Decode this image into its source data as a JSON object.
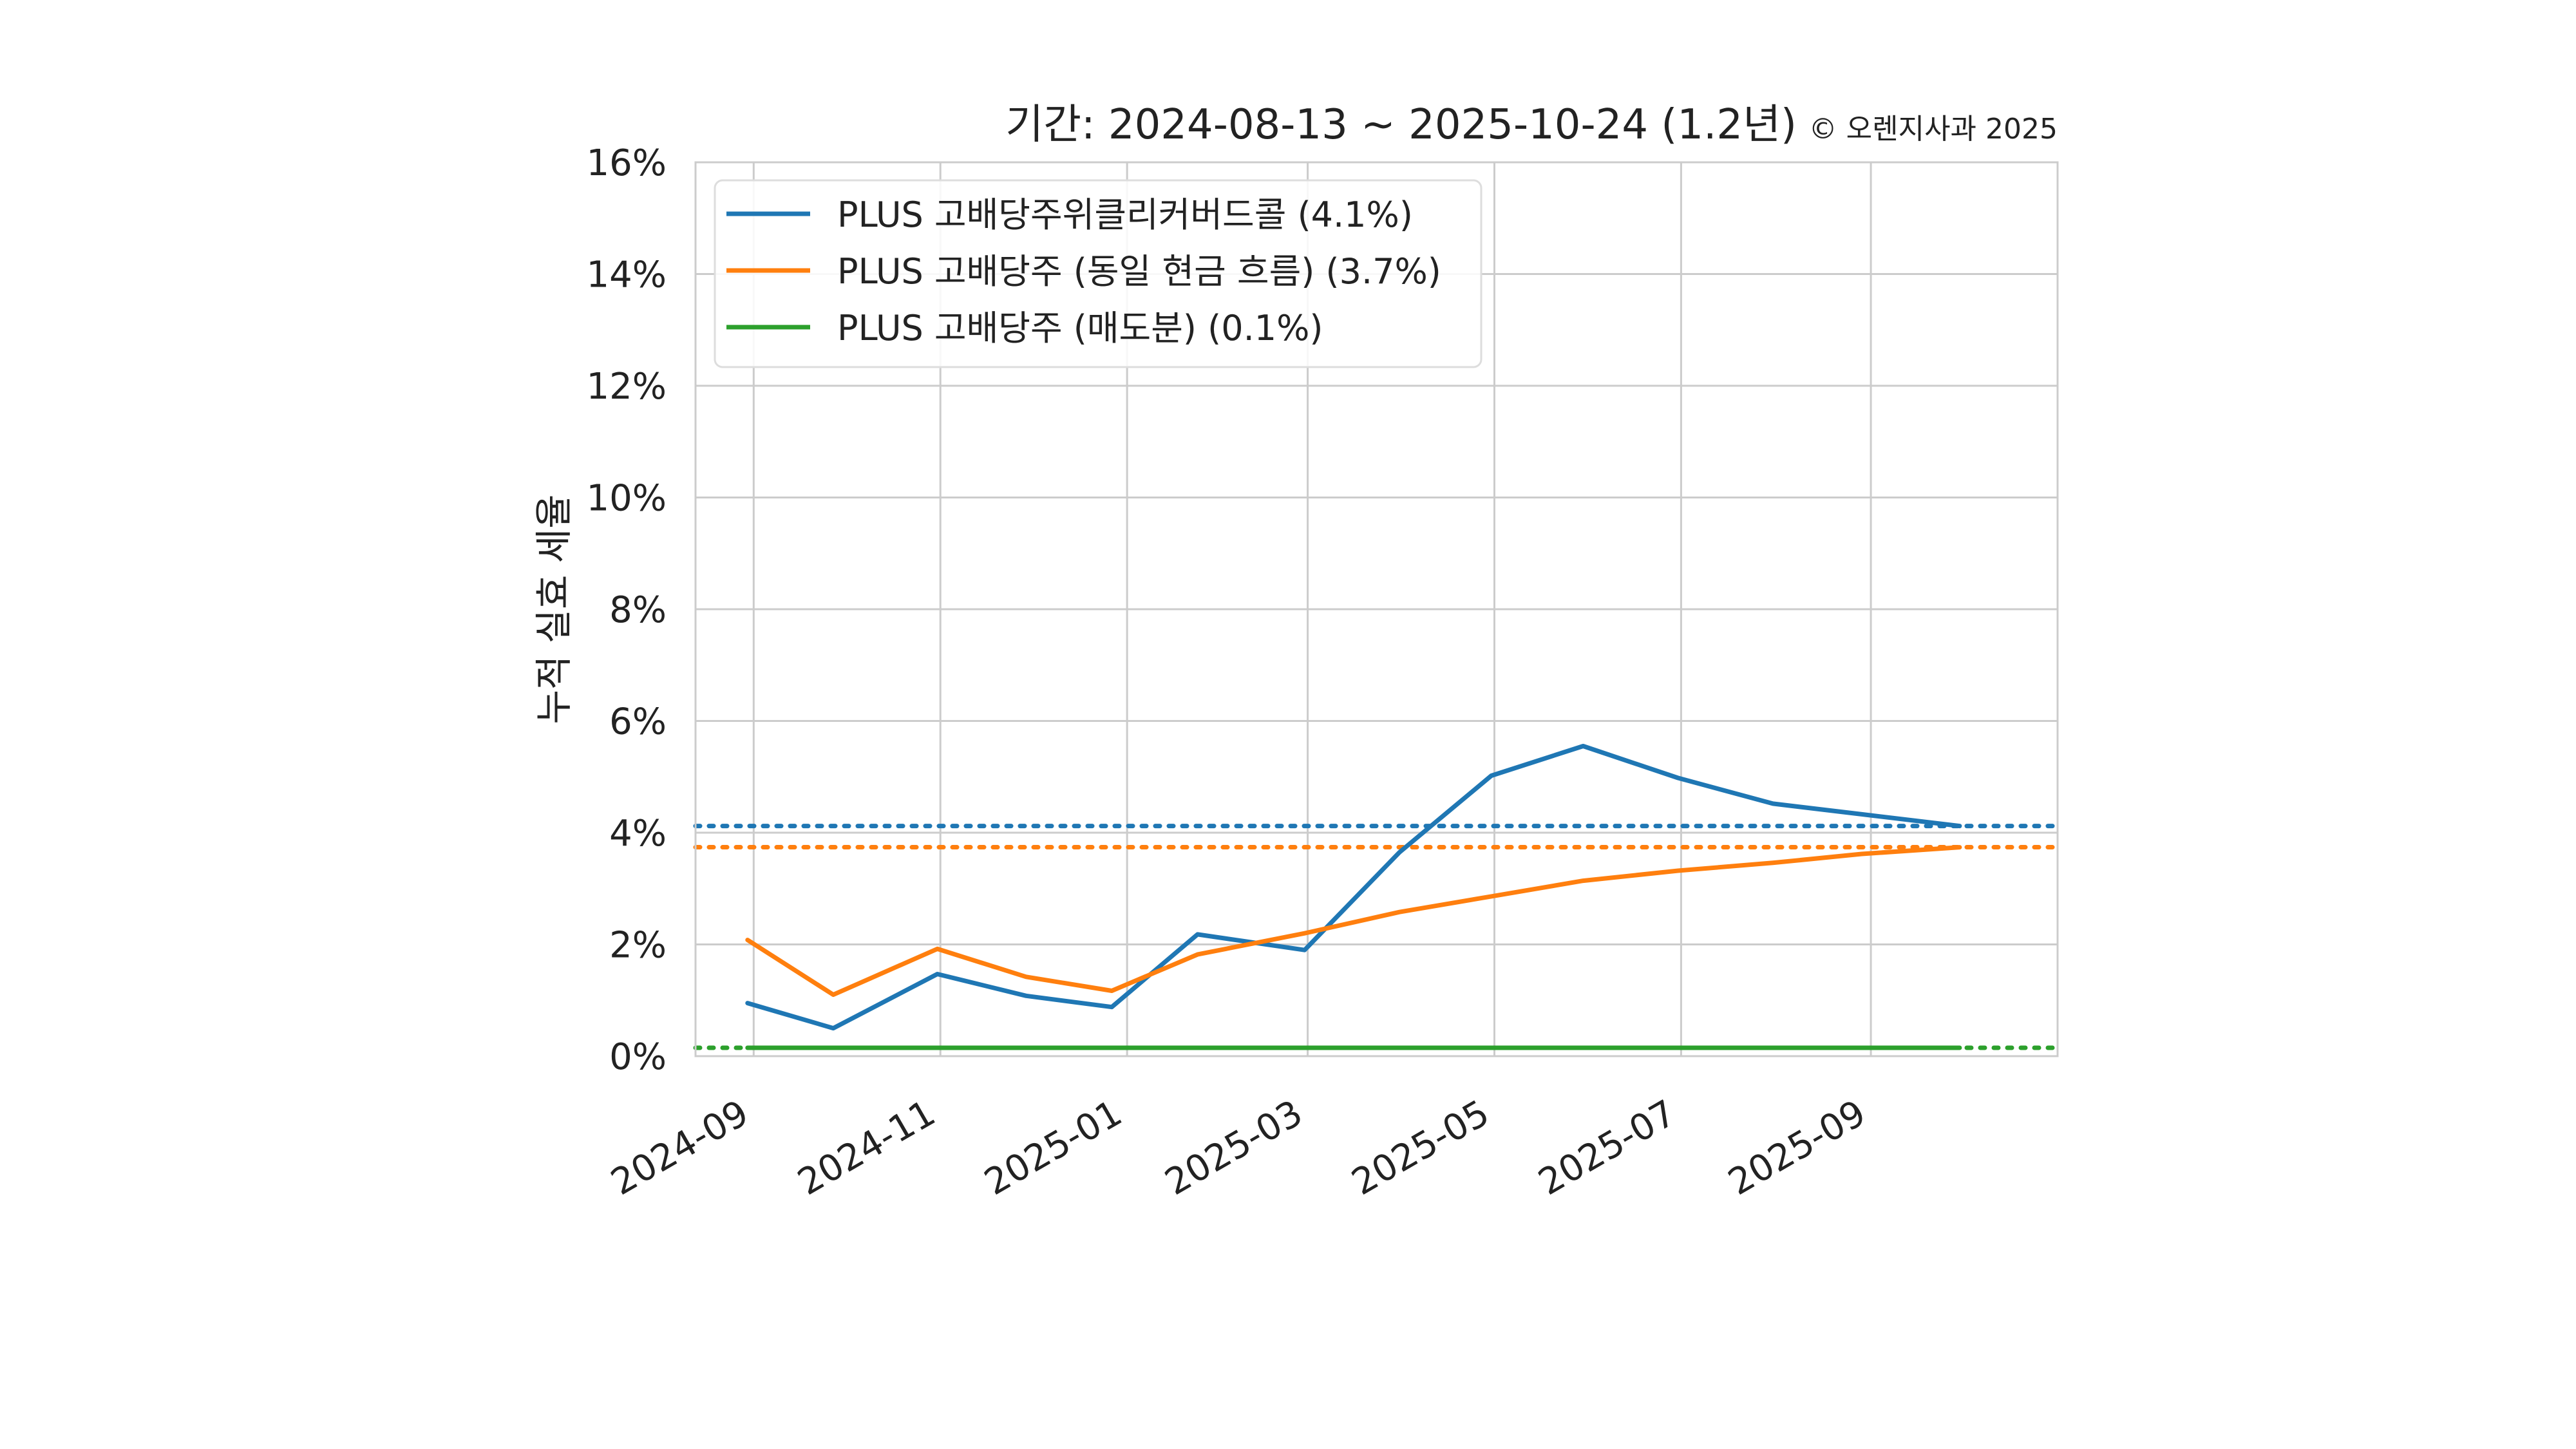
{
  "chart_data": {
    "type": "line",
    "title": "기간: 2024-08-13 ~ 2025-10-24 (1.2년)",
    "copyright": "© 오렌지사과 2025",
    "xlabel": "",
    "ylabel": "누적 실효 세율",
    "ylim": [
      0,
      16
    ],
    "y_ticks": [
      0,
      2,
      4,
      6,
      8,
      10,
      12,
      14,
      16
    ],
    "y_tick_labels": [
      "0%",
      "2%",
      "4%",
      "6%",
      "8%",
      "10%",
      "12%",
      "14%",
      "16%"
    ],
    "x_range": [
      "2024-08-13",
      "2025-11-01"
    ],
    "x_ticks": [
      "2024-09-01",
      "2024-11-01",
      "2025-01-01",
      "2025-03-01",
      "2025-05-01",
      "2025-07-01",
      "2025-09-01"
    ],
    "x_tick_labels": [
      "2024-09",
      "2024-11",
      "2025-01",
      "2025-03",
      "2025-05",
      "2025-07",
      "2025-09"
    ],
    "grid": true,
    "legend_position": "top-left",
    "x": [
      "2024-08-30",
      "2024-09-27",
      "2024-10-31",
      "2024-11-29",
      "2024-12-27",
      "2025-01-24",
      "2025-02-28",
      "2025-03-31",
      "2025-04-30",
      "2025-05-30",
      "2025-06-30",
      "2025-07-31",
      "2025-08-29",
      "2025-09-30"
    ],
    "series": [
      {
        "name": "PLUS 고배당주위클리커버드콜 (4.1%)",
        "color": "#1f77b4",
        "values": [
          0.95,
          0.5,
          1.47,
          1.08,
          0.88,
          2.18,
          1.9,
          3.65,
          5.02,
          5.55,
          4.98,
          4.52,
          4.33,
          4.12
        ],
        "reference": 4.12
      },
      {
        "name": "PLUS 고배당주 (동일 현금 흐름) (3.7%)",
        "color": "#ff7f0e",
        "values": [
          2.08,
          1.1,
          1.92,
          1.42,
          1.17,
          1.82,
          2.2,
          2.58,
          2.86,
          3.14,
          3.32,
          3.46,
          3.62,
          3.74
        ],
        "reference": 3.74
      },
      {
        "name": "PLUS 고배당주 (매도분) (0.1%)",
        "color": "#2ca02c",
        "values": [
          0.15,
          0.15,
          0.15,
          0.15,
          0.15,
          0.15,
          0.15,
          0.15,
          0.15,
          0.15,
          0.15,
          0.15,
          0.15,
          0.15
        ],
        "reference": 0.15
      }
    ]
  }
}
